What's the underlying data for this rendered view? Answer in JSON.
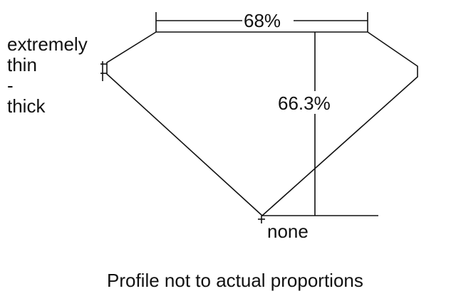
{
  "girdle_label": {
    "line1": "extremely",
    "line2": "thin",
    "line3": "-",
    "line4": "thick"
  },
  "table_label": "68%",
  "depth_label": "66.3%",
  "culet_label": "none",
  "caption": "Profile not to actual proportions",
  "stroke_color": "#111111"
}
